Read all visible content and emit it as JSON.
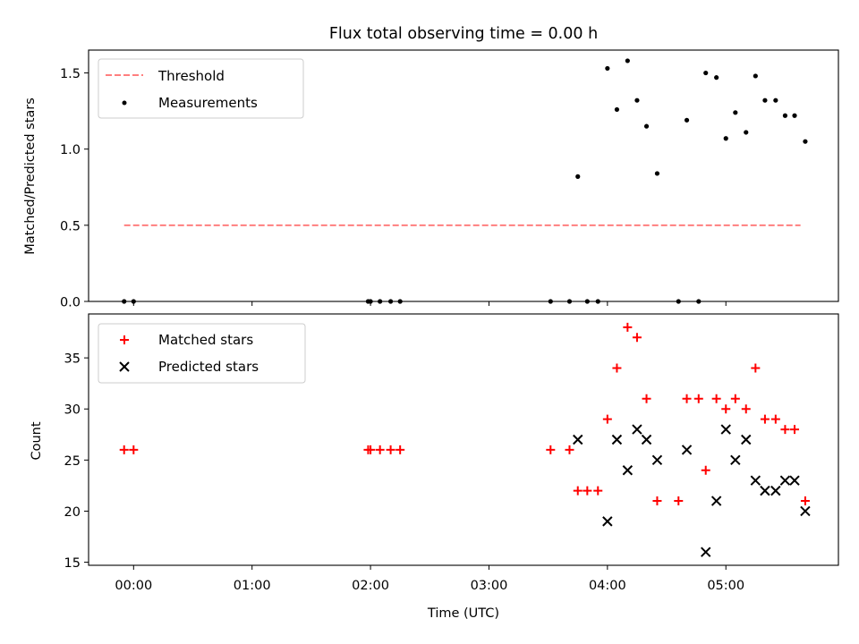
{
  "chart_data": [
    {
      "type": "scatter",
      "title": "Flux total observing time = 0.00 h",
      "ylabel": "Matched/Predicted stars",
      "xlim": [
        -0.38,
        5.95
      ],
      "ylim": [
        0,
        1.65
      ],
      "yticks": [
        0.0,
        0.5,
        1.0,
        1.5
      ],
      "ytick_labels": [
        "0.0",
        "0.5",
        "1.0",
        "1.5"
      ],
      "legend_position": "upper-left",
      "threshold": {
        "name": "Threshold",
        "value": 0.5,
        "x_range": [
          -0.08,
          5.63
        ],
        "color": "#ff7f7f"
      },
      "series": [
        {
          "name": "Measurements",
          "color": "#000000",
          "marker": "dot",
          "points": [
            [
              -0.08,
              0.0
            ],
            [
              0.0,
              0.0
            ],
            [
              1.98,
              0.0
            ],
            [
              2.0,
              0.0
            ],
            [
              2.08,
              0.0
            ],
            [
              2.17,
              0.0
            ],
            [
              2.25,
              0.0
            ],
            [
              3.52,
              0.0
            ],
            [
              3.68,
              0.0
            ],
            [
              3.75,
              0.82
            ],
            [
              3.83,
              0.0
            ],
            [
              3.92,
              0.0
            ],
            [
              4.0,
              1.53
            ],
            [
              4.08,
              1.26
            ],
            [
              4.17,
              1.58
            ],
            [
              4.25,
              1.32
            ],
            [
              4.33,
              1.15
            ],
            [
              4.42,
              0.84
            ],
            [
              4.6,
              0.0
            ],
            [
              4.67,
              1.19
            ],
            [
              4.77,
              0.0
            ],
            [
              4.83,
              1.5
            ],
            [
              4.92,
              1.47
            ],
            [
              5.0,
              1.07
            ],
            [
              5.08,
              1.24
            ],
            [
              5.17,
              1.11
            ],
            [
              5.25,
              1.48
            ],
            [
              5.33,
              1.32
            ],
            [
              5.42,
              1.32
            ],
            [
              5.5,
              1.22
            ],
            [
              5.58,
              1.22
            ],
            [
              5.67,
              1.05
            ]
          ]
        }
      ]
    },
    {
      "type": "scatter",
      "title": "",
      "xlabel": "Time (UTC)",
      "ylabel": "Count",
      "xlim": [
        -0.38,
        5.95
      ],
      "ylim": [
        14.7,
        39.3
      ],
      "xticks": [
        0,
        1,
        2,
        3,
        4,
        5
      ],
      "xtick_labels": [
        "00:00",
        "01:00",
        "02:00",
        "03:00",
        "04:00",
        "05:00"
      ],
      "yticks": [
        15,
        20,
        25,
        30,
        35
      ],
      "ytick_labels": [
        "15",
        "20",
        "25",
        "30",
        "35"
      ],
      "legend_position": "upper-left",
      "series": [
        {
          "name": "Matched stars",
          "color": "#ff0000",
          "marker": "plus",
          "points": [
            [
              -0.08,
              26
            ],
            [
              0.0,
              26
            ],
            [
              1.98,
              26
            ],
            [
              2.0,
              26
            ],
            [
              2.08,
              26
            ],
            [
              2.17,
              26
            ],
            [
              2.25,
              26
            ],
            [
              3.52,
              26
            ],
            [
              3.68,
              26
            ],
            [
              3.75,
              22
            ],
            [
              3.83,
              22
            ],
            [
              3.92,
              22
            ],
            [
              4.0,
              29
            ],
            [
              4.08,
              34
            ],
            [
              4.17,
              38
            ],
            [
              4.25,
              37
            ],
            [
              4.33,
              31
            ],
            [
              4.42,
              21
            ],
            [
              4.6,
              21
            ],
            [
              4.67,
              31
            ],
            [
              4.77,
              31
            ],
            [
              4.83,
              24
            ],
            [
              4.92,
              31
            ],
            [
              5.0,
              30
            ],
            [
              5.08,
              31
            ],
            [
              5.17,
              30
            ],
            [
              5.25,
              34
            ],
            [
              5.33,
              29
            ],
            [
              5.42,
              29
            ],
            [
              5.5,
              28
            ],
            [
              5.58,
              28
            ],
            [
              5.67,
              21
            ]
          ]
        },
        {
          "name": "Predicted stars",
          "color": "#000000",
          "marker": "x",
          "points": [
            [
              3.75,
              27
            ],
            [
              4.0,
              19
            ],
            [
              4.08,
              27
            ],
            [
              4.17,
              24
            ],
            [
              4.25,
              28
            ],
            [
              4.33,
              27
            ],
            [
              4.42,
              25
            ],
            [
              4.67,
              26
            ],
            [
              4.83,
              16
            ],
            [
              4.92,
              21
            ],
            [
              5.0,
              28
            ],
            [
              5.08,
              25
            ],
            [
              5.17,
              27
            ],
            [
              5.25,
              23
            ],
            [
              5.33,
              22
            ],
            [
              5.42,
              22
            ],
            [
              5.5,
              23
            ],
            [
              5.58,
              23
            ],
            [
              5.67,
              20
            ]
          ]
        }
      ]
    }
  ]
}
